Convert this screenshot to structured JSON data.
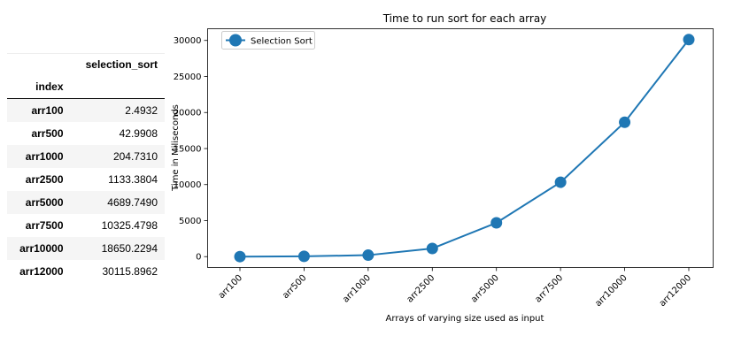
{
  "table": {
    "column_header": "selection_sort",
    "index_header": "index",
    "rows": [
      {
        "index": "arr100",
        "value": "2.4932"
      },
      {
        "index": "arr500",
        "value": "42.9908"
      },
      {
        "index": "arr1000",
        "value": "204.7310"
      },
      {
        "index": "arr2500",
        "value": "1133.3804"
      },
      {
        "index": "arr5000",
        "value": "4689.7490"
      },
      {
        "index": "arr7500",
        "value": "10325.4798"
      },
      {
        "index": "arr10000",
        "value": "18650.2294"
      },
      {
        "index": "arr12000",
        "value": "30115.8962"
      }
    ]
  },
  "chart_data": {
    "type": "line",
    "title": "Time to run sort for each array",
    "xlabel": "Arrays of varying size used as input",
    "ylabel": "Time in Miliseconds",
    "categories": [
      "arr100",
      "arr500",
      "arr1000",
      "arr2500",
      "arr5000",
      "arr7500",
      "arr10000",
      "arr12000"
    ],
    "series": [
      {
        "name": "Selection Sort",
        "values": [
          2.4932,
          42.9908,
          204.731,
          1133.3804,
          4689.749,
          10325.4798,
          18650.2294,
          30115.8962
        ],
        "color": "#1f77b4"
      }
    ],
    "yticks": [
      0,
      5000,
      10000,
      15000,
      20000,
      25000,
      30000
    ],
    "ylim": [
      -1506,
      31625
    ],
    "grid": false,
    "legend_position": "top-left"
  }
}
